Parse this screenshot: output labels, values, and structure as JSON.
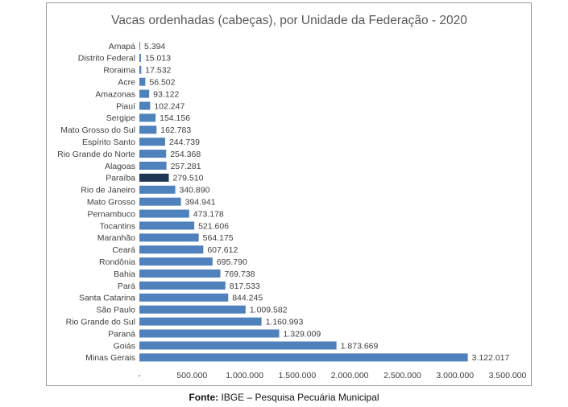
{
  "chart_data": {
    "type": "bar",
    "orientation": "horizontal",
    "title": "Vacas ordenhadas (cabeças), por Unidade da Federação - 2020",
    "categories": [
      "Amapá",
      "Distrito Federal",
      "Roraima",
      "Acre",
      "Amazonas",
      "Piauí",
      "Sergipe",
      "Mato Grosso do Sul",
      "Espírito Santo",
      "Rio Grande do Norte",
      "Alagoas",
      "Paraíba",
      "Rio de Janeiro",
      "Mato Grosso",
      "Pernambuco",
      "Tocantins",
      "Maranhão",
      "Ceará",
      "Rondônia",
      "Bahia",
      "Pará",
      "Santa Catarina",
      "São Paulo",
      "Rio Grande do Sul",
      "Paraná",
      "Goiás",
      "Minas Gerais"
    ],
    "values": [
      5394,
      15013,
      17532,
      56502,
      93122,
      102247,
      154156,
      162783,
      244739,
      254368,
      257281,
      279510,
      340890,
      394941,
      473178,
      521606,
      564175,
      607612,
      695790,
      769738,
      817533,
      844245,
      1009582,
      1160993,
      1329009,
      1873669,
      3122017
    ],
    "value_labels": [
      "5.394",
      "15.013",
      "17.532",
      "56.502",
      "93.122",
      "102.247",
      "154.156",
      "162.783",
      "244.739",
      "254.368",
      "257.281",
      "279.510",
      "340.890",
      "394.941",
      "473.178",
      "521.606",
      "564.175",
      "607.612",
      "695.790",
      "769.738",
      "817.533",
      "844.245",
      "1.009.582",
      "1.160.993",
      "1.329.009",
      "1.873.669",
      "3.122.017"
    ],
    "highlight": "Paraíba",
    "xlim": [
      0,
      3500000
    ],
    "x_ticks": [
      0,
      500000,
      1000000,
      1500000,
      2000000,
      2500000,
      3000000,
      3500000
    ],
    "x_tick_labels": [
      "-",
      "500.000",
      "1.000.000",
      "1.500.000",
      "2.000.000",
      "2.500.000",
      "3.000.000",
      "3.500.000"
    ],
    "xlabel": "",
    "ylabel": "",
    "grid": false,
    "colors": {
      "bar": "#4f81bd",
      "highlight": "#1f3554",
      "text": "#404040",
      "title": "#595959"
    }
  },
  "footer": {
    "source_label": "Fonte:",
    "source_text": " IBGE – Pesquisa Pecuária Municipal"
  }
}
